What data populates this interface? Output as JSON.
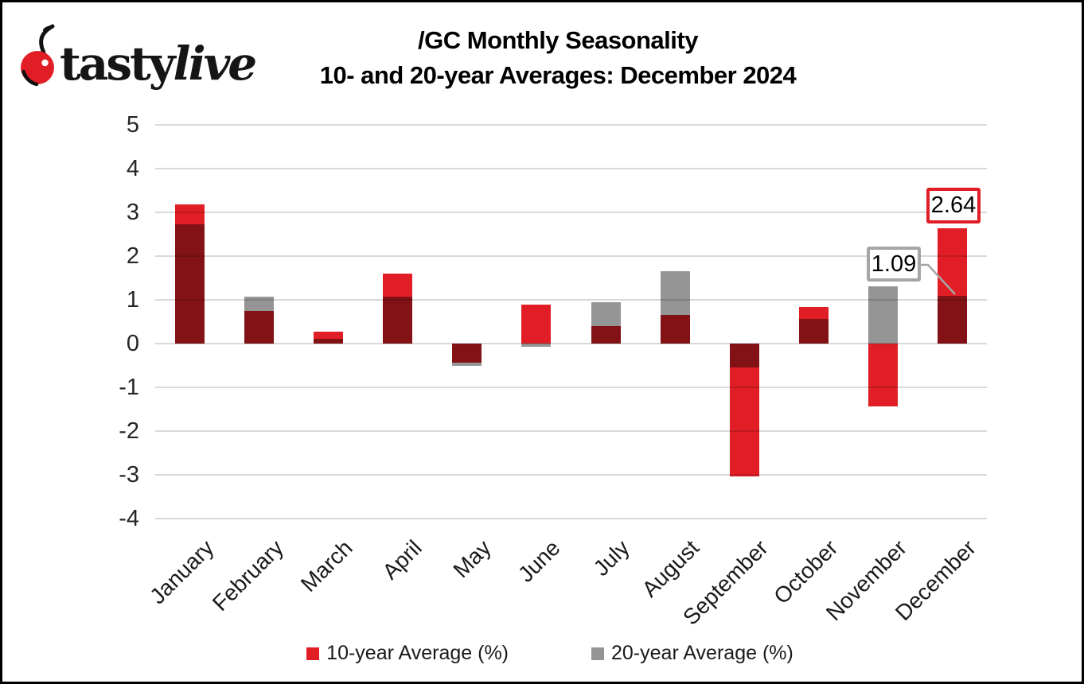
{
  "logo": {
    "brand_regular": "tasty",
    "brand_italic": "live"
  },
  "title": {
    "line1": "/GC Monthly Seasonality",
    "line2": "10- and 20-year Averages: December 2024"
  },
  "colors": {
    "red": "#E11E26",
    "gray": "#959595",
    "dark_overlap": "#7F1618",
    "gridline": "#D9D9D9",
    "callout_gray_border": "#A6A6A6",
    "callout_red_border": "#E11E26"
  },
  "chart_data": {
    "type": "bar",
    "title": "/GC Monthly Seasonality 10- and 20-year Averages: December 2024",
    "categories": [
      "January",
      "February",
      "March",
      "April",
      "May",
      "June",
      "July",
      "August",
      "September",
      "October",
      "November",
      "December"
    ],
    "series": [
      {
        "name": "10-year Average (%)",
        "color_key": "red",
        "values": [
          3.18,
          0.74,
          0.27,
          1.6,
          -0.43,
          0.89,
          0.4,
          0.66,
          -3.03,
          0.83,
          -1.44,
          2.64
        ]
      },
      {
        "name": "20-year Average (%)",
        "color_key": "gray",
        "values": [
          2.72,
          1.08,
          0.11,
          1.07,
          -0.5,
          -0.08,
          0.94,
          1.66,
          -0.55,
          0.57,
          1.31,
          1.09
        ]
      }
    ],
    "xlabel": "",
    "ylabel": "",
    "ylim": [
      -4,
      5
    ],
    "yticks": [
      5,
      4,
      3,
      2,
      1,
      0,
      -1,
      -2,
      -3,
      -4
    ],
    "grid": true,
    "legend_position": "bottom",
    "bar_style": "overlapped",
    "annotations": [
      {
        "label": "1.09",
        "border_color_key": "callout_gray_border",
        "month": "December",
        "series": "20-year Average (%)",
        "leader_line": true
      },
      {
        "label": "2.64",
        "border_color_key": "callout_red_border",
        "month": "December",
        "series": "10-year Average (%)",
        "leader_line": false
      }
    ]
  },
  "legend": {
    "items": [
      {
        "label": "10-year Average (%)",
        "color_key": "red"
      },
      {
        "label": "20-year Average (%)",
        "color_key": "gray"
      }
    ]
  }
}
